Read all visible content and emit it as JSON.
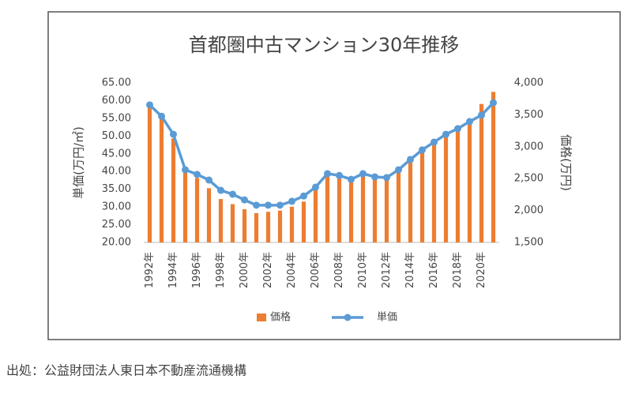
{
  "chart_data": {
    "type": "combo",
    "title": "首都圏中古マンション30年推移",
    "y_label": "単価(万円/㎡)",
    "y2_label": "価格(万円)",
    "categories": [
      "1992年",
      null,
      "1994年",
      null,
      "1996年",
      null,
      "1998年",
      null,
      "2000年",
      null,
      "2002年",
      null,
      "2004年",
      null,
      "2006年",
      null,
      "2008年",
      null,
      "2010年",
      null,
      "2012年",
      null,
      "2014年",
      null,
      "2016年",
      null,
      "2018年",
      null,
      "2020年",
      null
    ],
    "series": [
      {
        "name": "価格",
        "type": "bar",
        "axis": "y2",
        "color": "#ed7d31",
        "values": [
          3680,
          3440,
          3130,
          2640,
          2510,
          2350,
          2180,
          2100,
          2020,
          1960,
          1980,
          2000,
          2060,
          2140,
          2390,
          2600,
          2550,
          2480,
          2550,
          2490,
          2490,
          2660,
          2850,
          3000,
          3120,
          3220,
          3320,
          3440,
          3670,
          3860
        ]
      },
      {
        "name": "単価",
        "type": "line",
        "color": "#5b9bd5",
        "values": [
          58.8,
          55.6,
          50.5,
          40.5,
          39.2,
          37.6,
          34.7,
          33.6,
          32.0,
          30.5,
          30.5,
          30.5,
          31.6,
          33.1,
          35.6,
          39.4,
          38.9,
          37.8,
          39.4,
          38.5,
          38.3,
          40.5,
          43.4,
          46.1,
          48.3,
          50.5,
          52.1,
          54.1,
          55.9,
          59.4
        ]
      }
    ],
    "ylim": [
      20,
      65
    ],
    "yticks": [
      {
        "value": 65,
        "label": "65.00"
      },
      {
        "value": 60,
        "label": "60.00"
      },
      {
        "value": 55,
        "label": "55.00"
      },
      {
        "value": 50,
        "label": "50.00"
      },
      {
        "value": 45,
        "label": "45.00"
      },
      {
        "value": 40,
        "label": "40.00"
      },
      {
        "value": 35,
        "label": "35.00"
      },
      {
        "value": 30,
        "label": "30.00"
      },
      {
        "value": 25,
        "label": "25.00"
      },
      {
        "value": 20,
        "label": "20.00"
      }
    ],
    "y2lim": [
      1500,
      4000
    ],
    "y2ticks": [
      {
        "value": 4000,
        "label": "4,000"
      },
      {
        "value": 3500,
        "label": "3,500"
      },
      {
        "value": 3000,
        "label": "3,000"
      },
      {
        "value": 2500,
        "label": "2,500"
      },
      {
        "value": 2000,
        "label": "2,000"
      },
      {
        "value": 1500,
        "label": "1,500"
      }
    ],
    "grid": false
  },
  "source": "出処：公益財団法人東日本不動産流通機構"
}
